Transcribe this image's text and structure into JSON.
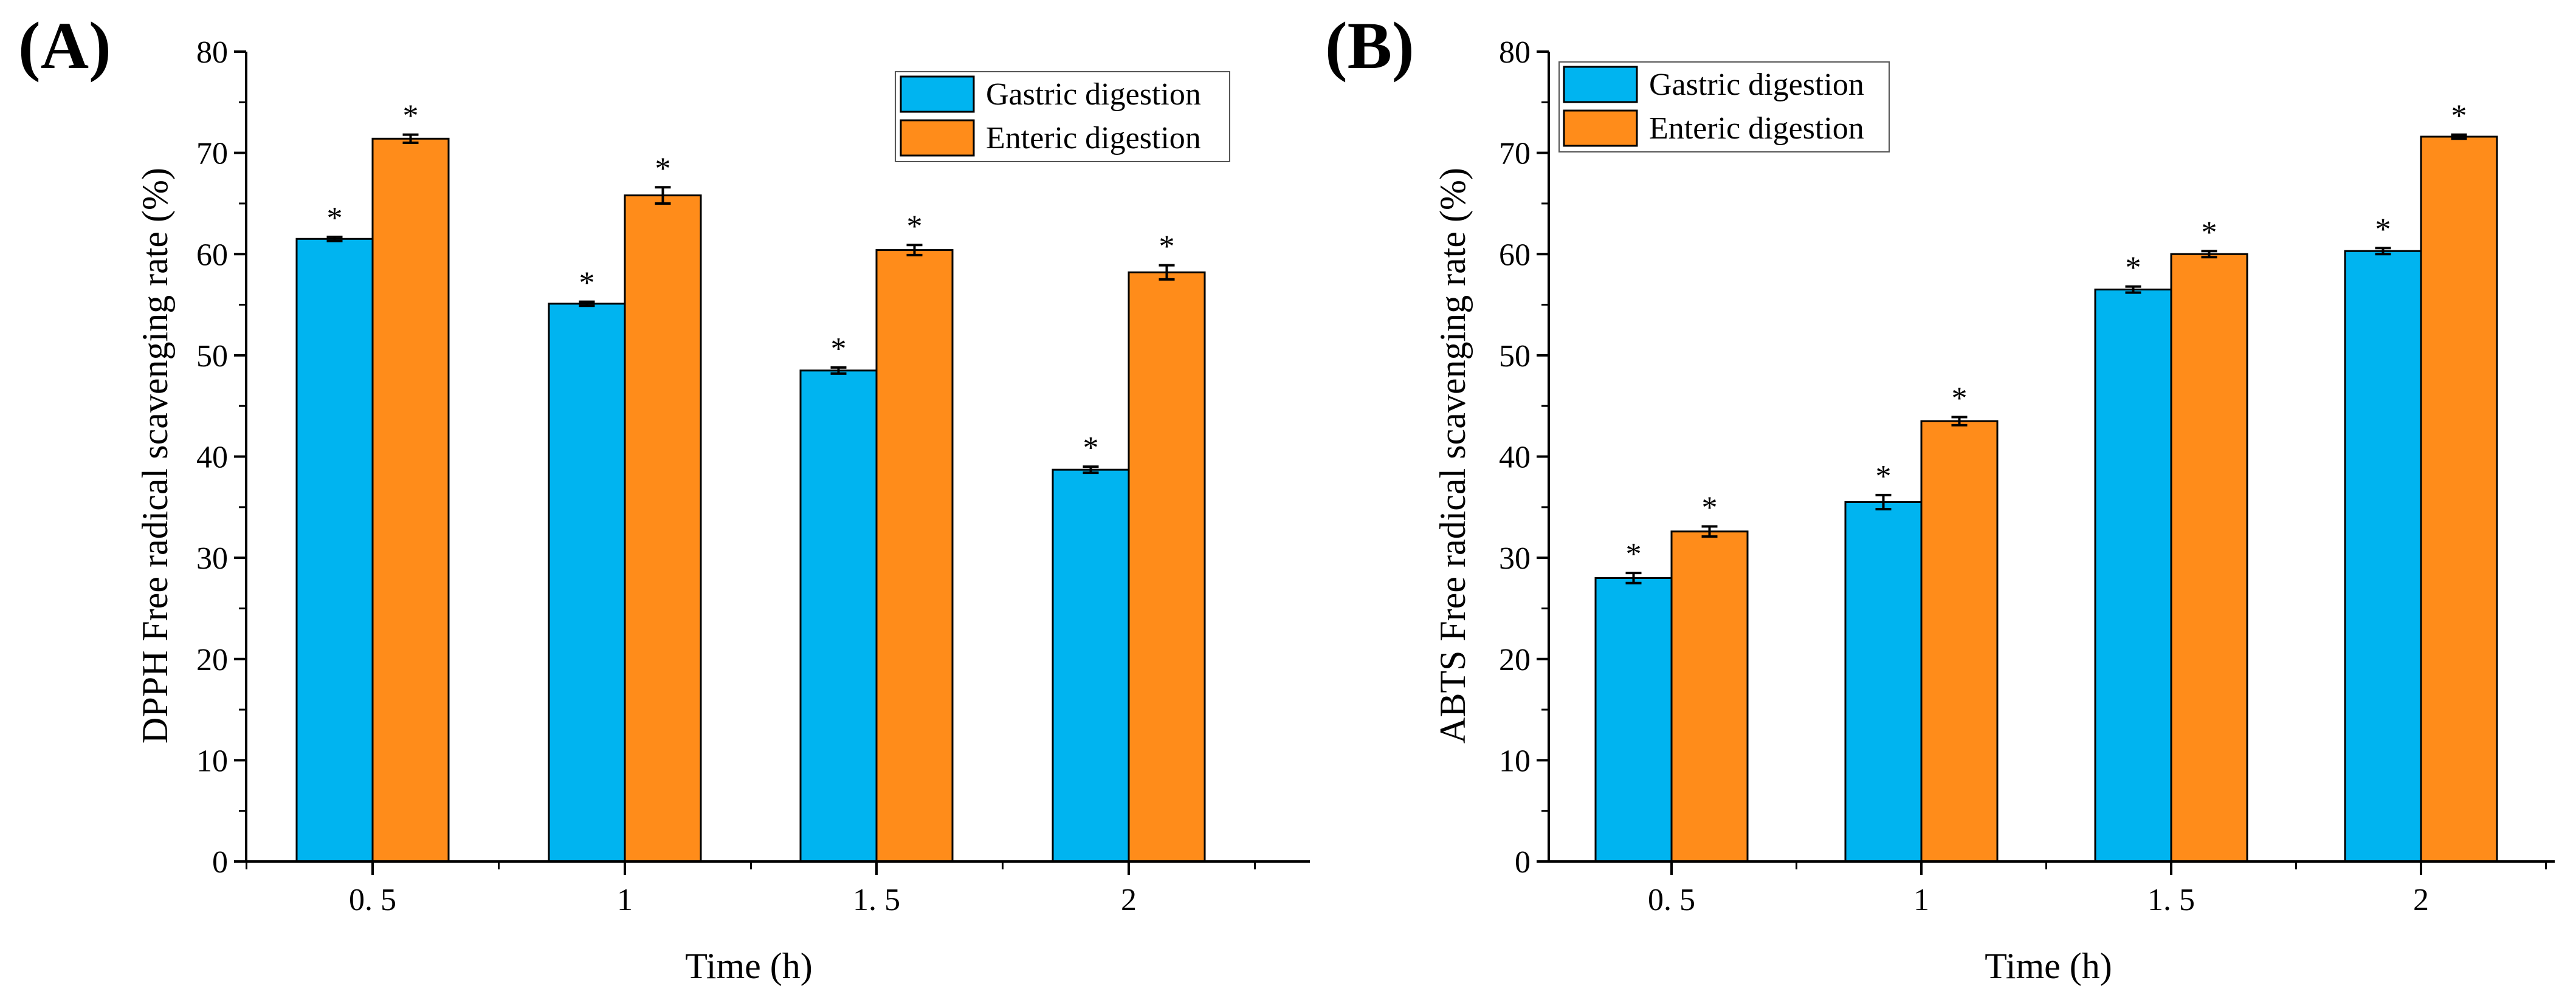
{
  "chart_data": [
    {
      "type": "bar",
      "panel_label": "(A)",
      "categories": [
        "0. 5",
        "1",
        "1. 5",
        "2"
      ],
      "series": [
        {
          "name": "Gastric digestion",
          "values": [
            61.5,
            55.1,
            48.5,
            38.7
          ],
          "errors": [
            0.2,
            0.2,
            0.3,
            0.3
          ],
          "color": "#00B4F0"
        },
        {
          "name": "Enteric digestion",
          "values": [
            71.4,
            65.8,
            60.4,
            58.2
          ],
          "errors": [
            0.4,
            0.8,
            0.5,
            0.7
          ],
          "color": "#FF8C1A"
        }
      ],
      "annotation": "*",
      "xlabel": "Time (h)",
      "ylabel": "DPPH Free radical scavenging rate (%)",
      "ylim": [
        0,
        80
      ],
      "yticks": [
        "0",
        "10",
        "20",
        "30",
        "40",
        "50",
        "60",
        "70",
        "80"
      ],
      "legend_position": "top-right"
    },
    {
      "type": "bar",
      "panel_label": "(B)",
      "categories": [
        "0. 5",
        "1",
        "1. 5",
        "2"
      ],
      "series": [
        {
          "name": "Gastric digestion",
          "values": [
            28.0,
            35.5,
            56.5,
            60.3
          ],
          "errors": [
            0.5,
            0.7,
            0.3,
            0.3
          ],
          "color": "#00B4F0"
        },
        {
          "name": "Enteric digestion",
          "values": [
            32.6,
            43.5,
            60.0,
            71.6
          ],
          "errors": [
            0.5,
            0.4,
            0.3,
            0.2
          ],
          "color": "#FF8C1A"
        }
      ],
      "annotation": "*",
      "xlabel": "Time (h)",
      "ylabel": "ABTS Free radical scavenging rate (%)",
      "ylim": [
        0,
        80
      ],
      "yticks": [
        "0",
        "10",
        "20",
        "30",
        "40",
        "50",
        "60",
        "70",
        "80"
      ],
      "legend_position": "top-left"
    }
  ]
}
